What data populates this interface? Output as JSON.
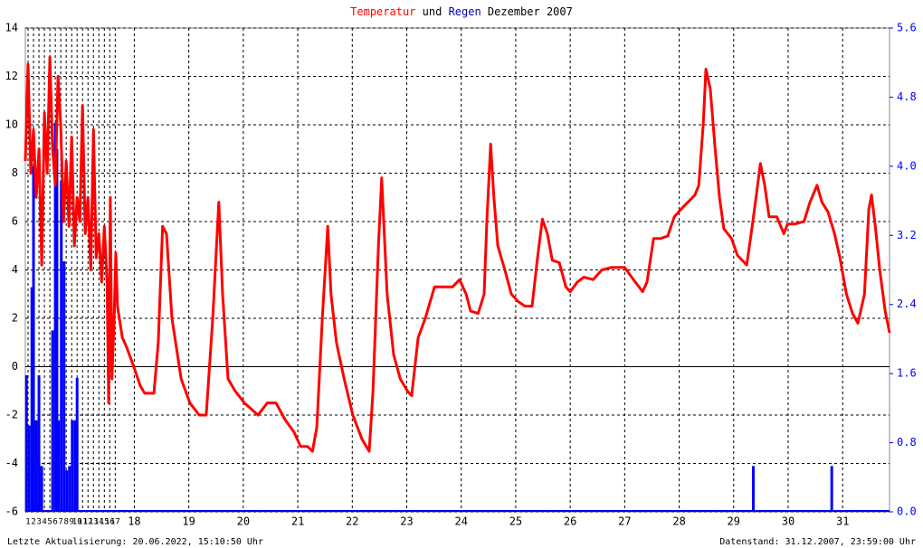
{
  "chart_data": {
    "type": "line",
    "title": "Dezember 2007",
    "title_connector": "und",
    "footer_left": "Letzte Aktualisierung: 20.06.2022, 15:10:50 Uhr",
    "footer_right": "Datenstand: 31.12.2007, 23:59:00 Uhr",
    "xlim": [
      16,
      31.86
    ],
    "xticks": [
      {
        "value": 16.05,
        "label": "1"
      },
      {
        "value": 16.15,
        "label": "2"
      },
      {
        "value": 16.25,
        "label": "3"
      },
      {
        "value": 16.35,
        "label": "4"
      },
      {
        "value": 16.45,
        "label": "5"
      },
      {
        "value": 16.55,
        "label": "6"
      },
      {
        "value": 16.65,
        "label": "7"
      },
      {
        "value": 16.75,
        "label": "8"
      },
      {
        "value": 16.85,
        "label": "9"
      },
      {
        "value": 16.95,
        "label": "10"
      },
      {
        "value": 17.05,
        "label": "11"
      },
      {
        "value": 17.15,
        "label": "12"
      },
      {
        "value": 17.25,
        "label": "13"
      },
      {
        "value": 17.35,
        "label": "14"
      },
      {
        "value": 17.45,
        "label": "15"
      },
      {
        "value": 17.55,
        "label": "16"
      },
      {
        "value": 17.65,
        "label": "17"
      },
      18,
      19,
      20,
      21,
      22,
      23,
      24,
      25,
      26,
      27,
      28,
      29,
      30,
      31
    ],
    "ylim": [
      -6,
      14
    ],
    "yticks": [
      -6,
      -4,
      -2,
      0,
      2,
      4,
      6,
      8,
      10,
      12,
      14
    ],
    "y2lim": [
      0,
      5.6
    ],
    "y2ticks": [
      {
        "value": 0,
        "label": "0.0"
      },
      0.8,
      1.6,
      2.4,
      3.2,
      {
        "value": 4,
        "label": "4.0"
      },
      4.8,
      5.6
    ],
    "grid": true,
    "series": [
      {
        "name": "Temperatur",
        "type": "line",
        "color": "#ff0000",
        "x": [
          16.0,
          16.05,
          16.1,
          16.15,
          16.2,
          16.25,
          16.3,
          16.35,
          16.4,
          16.45,
          16.5,
          16.55,
          16.6,
          16.65,
          16.7,
          16.75,
          16.8,
          16.85,
          16.9,
          16.95,
          17.0,
          17.05,
          17.1,
          17.15,
          17.2,
          17.25,
          17.3,
          17.35,
          17.4,
          17.45,
          17.5,
          17.53,
          17.56,
          17.59,
          17.63,
          17.66,
          17.69,
          17.78,
          17.86,
          17.99,
          18.11,
          18.19,
          18.36,
          18.44,
          18.52,
          18.59,
          18.69,
          18.86,
          19.02,
          19.19,
          19.32,
          19.44,
          19.55,
          19.62,
          19.72,
          19.85,
          20.02,
          20.27,
          20.44,
          20.6,
          20.77,
          20.93,
          21.05,
          21.18,
          21.27,
          21.35,
          21.45,
          21.55,
          21.61,
          21.71,
          21.85,
          22.01,
          22.18,
          22.31,
          22.38,
          22.48,
          22.54,
          22.64,
          22.76,
          22.88,
          23.01,
          23.09,
          23.21,
          23.34,
          23.51,
          23.67,
          23.84,
          23.97,
          24.09,
          24.17,
          24.31,
          24.42,
          24.47,
          24.54,
          24.6,
          24.67,
          24.8,
          24.92,
          25.04,
          25.17,
          25.3,
          25.4,
          25.49,
          25.58,
          25.67,
          25.8,
          25.92,
          26.0,
          26.13,
          26.25,
          26.42,
          26.58,
          26.75,
          27.0,
          27.16,
          27.33,
          27.41,
          27.53,
          27.66,
          27.79,
          27.91,
          28.03,
          28.16,
          28.29,
          28.36,
          28.44,
          28.49,
          28.57,
          28.66,
          28.74,
          28.82,
          28.96,
          29.07,
          29.24,
          29.32,
          29.41,
          29.49,
          29.57,
          29.65,
          29.79,
          29.92,
          29.99,
          30.12,
          30.29,
          30.4,
          30.53,
          30.62,
          30.73,
          30.85,
          30.95,
          31.07,
          31.18,
          31.28,
          31.4,
          31.48,
          31.53,
          31.6,
          31.68,
          31.78,
          31.86
        ],
        "values": [
          8.5,
          12.5,
          8,
          9.8,
          7,
          9,
          4.2,
          10.5,
          8,
          12.8,
          9,
          7.5,
          12,
          10,
          6,
          8.5,
          5.8,
          9.5,
          5,
          7,
          6,
          10.8,
          5.5,
          7,
          4,
          9.8,
          4.5,
          5.5,
          3.5,
          5.8,
          3.5,
          -1.5,
          7,
          -0.5,
          2,
          4.7,
          2.5,
          1.2,
          0.8,
          0,
          -0.8,
          -1.1,
          -1.1,
          1,
          5.8,
          5.5,
          2,
          -0.5,
          -1.5,
          -2,
          -2,
          2,
          6.8,
          3,
          -0.5,
          -1,
          -1.5,
          -2,
          -1.5,
          -1.5,
          -2.2,
          -2.7,
          -3.3,
          -3.3,
          -3.5,
          -2.5,
          2,
          5.8,
          3,
          1,
          -0.5,
          -2,
          -3,
          -3.5,
          -1,
          5,
          7.8,
          3,
          0.5,
          -0.5,
          -1,
          -1.2,
          1.2,
          2,
          3.3,
          3.3,
          3.3,
          3.6,
          3,
          2.3,
          2.2,
          3,
          6,
          9.2,
          7,
          5,
          4,
          3,
          2.7,
          2.5,
          2.5,
          4.5,
          6.1,
          5.5,
          4.4,
          4.3,
          3.3,
          3.1,
          3.5,
          3.7,
          3.6,
          4,
          4.1,
          4.1,
          3.6,
          3.1,
          3.5,
          5.3,
          5.3,
          5.4,
          6.2,
          6.5,
          6.8,
          7.1,
          7.5,
          10,
          12.3,
          11.5,
          9,
          7,
          5.7,
          5.3,
          4.6,
          4.2,
          5.5,
          7,
          8.4,
          7.5,
          6.2,
          6.2,
          5.5,
          5.9,
          5.9,
          6,
          6.8,
          7.5,
          6.8,
          6.4,
          5.5,
          4.5,
          3,
          2.2,
          1.8,
          3,
          6.5,
          7.1,
          5.8,
          4,
          2.3,
          1.4
        ]
      },
      {
        "name": "Regen",
        "type": "bar",
        "axis": "y2",
        "color": "#0000ff",
        "x": [
          16.02,
          16.07,
          16.12,
          16.15,
          16.2,
          16.25,
          16.3,
          16.5,
          16.55,
          16.58,
          16.61,
          16.66,
          16.71,
          16.76,
          16.81,
          16.86,
          16.91,
          16.95,
          29.36,
          30.8
        ],
        "values": [
          1.58,
          1.0,
          2.6,
          4.0,
          1.06,
          1.58,
          0.53,
          2.1,
          4.5,
          4.2,
          1.06,
          3.83,
          2.9,
          0.48,
          0.53,
          1.06,
          1.06,
          1.55,
          0.53,
          0.53
        ]
      }
    ]
  }
}
